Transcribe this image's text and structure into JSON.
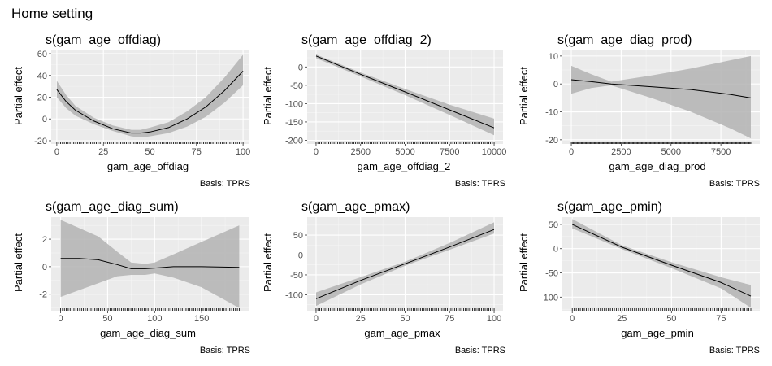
{
  "figure_title": "Home setting",
  "chart_data": [
    {
      "type": "line",
      "title": "s(gam_age_offdiag)",
      "xlabel": "gam_age_offdiag",
      "ylabel": "Partial effect",
      "caption": "Basis: TPRS",
      "xlim": [
        -3,
        103
      ],
      "ylim": [
        -23,
        63
      ],
      "xticks": [
        0,
        25,
        50,
        75,
        100
      ],
      "yticks": [
        -20,
        0,
        20,
        40,
        60
      ],
      "x": [
        0,
        5,
        10,
        20,
        30,
        40,
        45,
        50,
        60,
        70,
        80,
        90,
        100
      ],
      "y": [
        27,
        16,
        8,
        -2,
        -9,
        -13,
        -13,
        -12,
        -8,
        0,
        11,
        26,
        44
      ],
      "lower": [
        20,
        10,
        3,
        -5,
        -11,
        -16,
        -17,
        -16,
        -13,
        -7,
        2,
        15,
        31
      ],
      "upper": [
        35,
        22,
        12,
        1,
        -6,
        -10,
        -10,
        -8,
        -3,
        7,
        20,
        38,
        59
      ],
      "rug": {
        "from": 0,
        "to": 100,
        "n": 100
      }
    },
    {
      "type": "line",
      "title": "s(gam_age_offdiag_2)",
      "xlabel": "gam_age_offdiag_2",
      "ylabel": "Partial effect",
      "caption": "Basis: TPRS",
      "xlim": [
        -500,
        10500
      ],
      "ylim": [
        -210,
        45
      ],
      "xticks": [
        0,
        2500,
        5000,
        7500,
        10000
      ],
      "yticks": [
        -200,
        -150,
        -100,
        -50,
        0
      ],
      "x": [
        0,
        2500,
        5000,
        7500,
        10000
      ],
      "y": [
        30,
        -20,
        -68,
        -117,
        -166
      ],
      "lower": [
        24,
        -26,
        -77,
        -131,
        -186
      ],
      "upper": [
        34,
        -15,
        -60,
        -103,
        -141
      ],
      "rug": {
        "from": 0,
        "to": 10000,
        "n": 100
      }
    },
    {
      "type": "line",
      "title": "s(gam_age_diag_prod)",
      "xlabel": "gam_age_diag_prod",
      "ylabel": "Partial effect",
      "caption": "Basis: TPRS",
      "xlim": [
        -450,
        9450
      ],
      "ylim": [
        -21.5,
        12
      ],
      "xticks": [
        0,
        2500,
        5000,
        7500
      ],
      "yticks": [
        -20,
        -10,
        0,
        10
      ],
      "x": [
        0,
        1000,
        2000,
        4000,
        6000,
        8000,
        9000
      ],
      "y": [
        1.5,
        0.8,
        0,
        -1,
        -2,
        -3.8,
        -5
      ],
      "lower": [
        -3.5,
        -1.5,
        -0.5,
        -5,
        -10,
        -16,
        -19.5
      ],
      "upper": [
        6.5,
        3.5,
        0.8,
        3,
        5.5,
        8.5,
        10
      ],
      "rug": {
        "from": 0,
        "to": 9000,
        "n": 180
      }
    },
    {
      "type": "line",
      "title": "s(gam_age_diag_sum)",
      "xlabel": "gam_age_diag_sum",
      "ylabel": "Partial effect",
      "caption": "Basis: TPRS",
      "xlim": [
        -10,
        200
      ],
      "ylim": [
        -3.2,
        3.6
      ],
      "xticks": [
        0,
        50,
        100,
        150
      ],
      "yticks": [
        -2,
        0,
        2
      ],
      "x": [
        0,
        20,
        40,
        60,
        75,
        90,
        100,
        120,
        150,
        190
      ],
      "y": [
        0.6,
        0.6,
        0.5,
        0.15,
        -0.15,
        -0.15,
        -0.1,
        0,
        0,
        -0.05
      ],
      "lower": [
        -2.2,
        -1.7,
        -1.2,
        -0.7,
        -0.6,
        -0.6,
        -0.5,
        -0.8,
        -1.5,
        -3
      ],
      "upper": [
        3.4,
        2.8,
        2.2,
        1.1,
        0.3,
        0.2,
        0.3,
        0.9,
        1.8,
        3
      ],
      "rug": {
        "from": 0,
        "to": 190,
        "n": 95
      }
    },
    {
      "type": "line",
      "title": "s(gam_age_pmax)",
      "xlabel": "gam_age_pmax",
      "ylabel": "Partial effect",
      "caption": "Basis: TPRS",
      "xlim": [
        -5,
        105
      ],
      "ylim": [
        -140,
        95
      ],
      "xticks": [
        0,
        25,
        50,
        75,
        100
      ],
      "yticks": [
        -100,
        -50,
        0,
        50
      ],
      "x": [
        0,
        25,
        50,
        75,
        100
      ],
      "y": [
        -110,
        -64,
        -22,
        20,
        64
      ],
      "lower": [
        -128,
        -74,
        -27,
        13,
        54
      ],
      "upper": [
        -94,
        -56,
        -17,
        30,
        82
      ],
      "rug": {
        "from": 0,
        "to": 100,
        "n": 100
      }
    },
    {
      "type": "line",
      "title": "s(gam_age_pmin)",
      "xlabel": "gam_age_pmin",
      "ylabel": "Partial effect",
      "caption": "Basis: TPRS",
      "xlim": [
        -5,
        94.5
      ],
      "ylim": [
        -128,
        65
      ],
      "xticks": [
        0,
        25,
        50,
        75
      ],
      "yticks": [
        -100,
        -50,
        0,
        50
      ],
      "x": [
        0,
        25,
        50,
        75,
        90
      ],
      "y": [
        50,
        3,
        -34,
        -70,
        -98
      ],
      "lower": [
        42,
        -1,
        -40,
        -82,
        -122
      ],
      "upper": [
        61,
        7,
        -28,
        -59,
        -75
      ],
      "rug": {
        "from": 0,
        "to": 90,
        "n": 90
      }
    }
  ]
}
